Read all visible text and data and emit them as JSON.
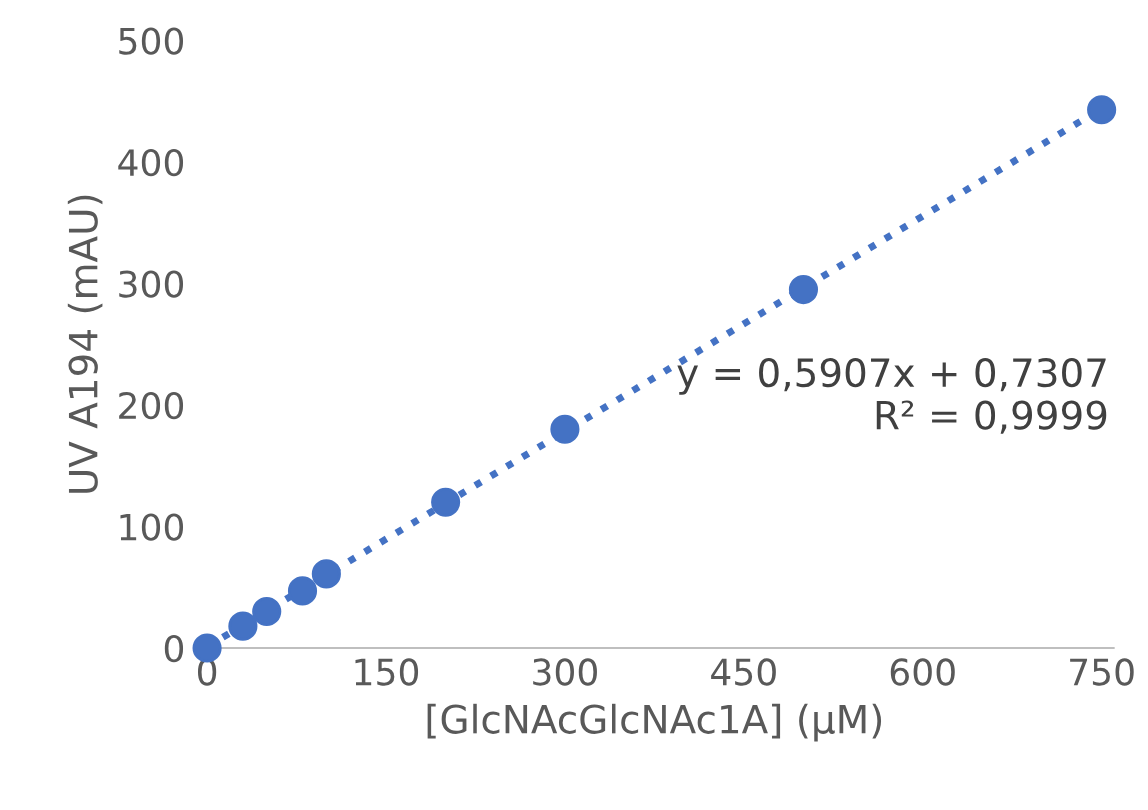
{
  "chart_data": {
    "type": "scatter",
    "xlabel": "[GlcNAcGlcNAc1A] (µM)",
    "ylabel": "UV A194 (mAU)",
    "xlim": [
      -10,
      760
    ],
    "ylim": [
      0,
      500
    ],
    "xticks": [
      0,
      150,
      300,
      450,
      600,
      750
    ],
    "yticks": [
      0,
      100,
      200,
      300,
      400,
      500
    ],
    "grid": false,
    "series": [
      {
        "marker": "circle",
        "color": "#4472c4",
        "x": [
          0,
          30,
          50,
          80,
          100,
          200,
          300,
          500,
          750
        ],
        "values": [
          0,
          18,
          30,
          47,
          61,
          120,
          180,
          295,
          443
        ]
      },
      {
        "type": "line",
        "marker": "none",
        "color": "#4472c4",
        "line_style": "dotted",
        "x": [
          0,
          750
        ],
        "values": [
          1,
          444
        ]
      }
    ],
    "annotations": [
      "y = 0,5907x + 0,7307",
      "R² = 0,9999"
    ]
  }
}
